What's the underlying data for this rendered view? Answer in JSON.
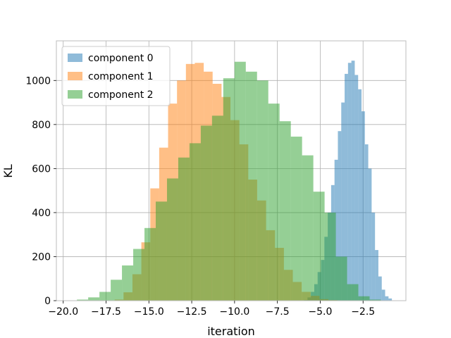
{
  "chart_data": {
    "type": "histogram",
    "xlabel": "iteration",
    "ylabel": "KL",
    "xlim": [
      -20.4,
      0.0
    ],
    "ylim": [
      0,
      1180
    ],
    "grid": true,
    "legend_position": "upper-left",
    "x_ticks": [
      {
        "value": -20.0,
        "label": "−20.0"
      },
      {
        "value": -17.5,
        "label": "−17.5"
      },
      {
        "value": -15.0,
        "label": "−15.0"
      },
      {
        "value": -12.5,
        "label": "−12.5"
      },
      {
        "value": -10.0,
        "label": "−10.0"
      },
      {
        "value": -7.5,
        "label": "−7.5"
      },
      {
        "value": -5.0,
        "label": "−5.0"
      },
      {
        "value": -2.5,
        "label": "−2.5"
      }
    ],
    "y_ticks": [
      {
        "value": 0,
        "label": "0"
      },
      {
        "value": 200,
        "label": "200"
      },
      {
        "value": 400,
        "label": "400"
      },
      {
        "value": 600,
        "label": "600"
      },
      {
        "value": 800,
        "label": "800"
      },
      {
        "value": 1000,
        "label": "1000"
      }
    ],
    "series": [
      {
        "name": "component 0",
        "color": "#1f77b4",
        "bin_start": -5.94,
        "bin_width": 0.197,
        "counts": [
          3,
          15,
          40,
          75,
          130,
          185,
          290,
          400,
          525,
          640,
          770,
          900,
          1030,
          1080,
          1090,
          1025,
          960,
          860,
          710,
          600,
          400,
          230,
          110,
          50,
          20,
          10
        ]
      },
      {
        "name": "component 1",
        "color": "#ff7f0e",
        "bin_start": -17.0,
        "bin_width": 0.52,
        "counts": [
          5,
          38,
          120,
          265,
          510,
          695,
          895,
          1000,
          1075,
          1080,
          1040,
          985,
          925,
          820,
          710,
          550,
          455,
          320,
          240,
          140,
          85,
          40,
          22,
          7,
          3
        ]
      },
      {
        "name": "component 2",
        "color": "#2ca02c",
        "bin_start": -19.2,
        "bin_width": 0.657,
        "counts": [
          5,
          15,
          40,
          95,
          160,
          235,
          330,
          450,
          555,
          650,
          715,
          795,
          840,
          1010,
          1085,
          1040,
          1000,
          895,
          815,
          745,
          660,
          495,
          400,
          200,
          75,
          20,
          5
        ]
      }
    ]
  }
}
